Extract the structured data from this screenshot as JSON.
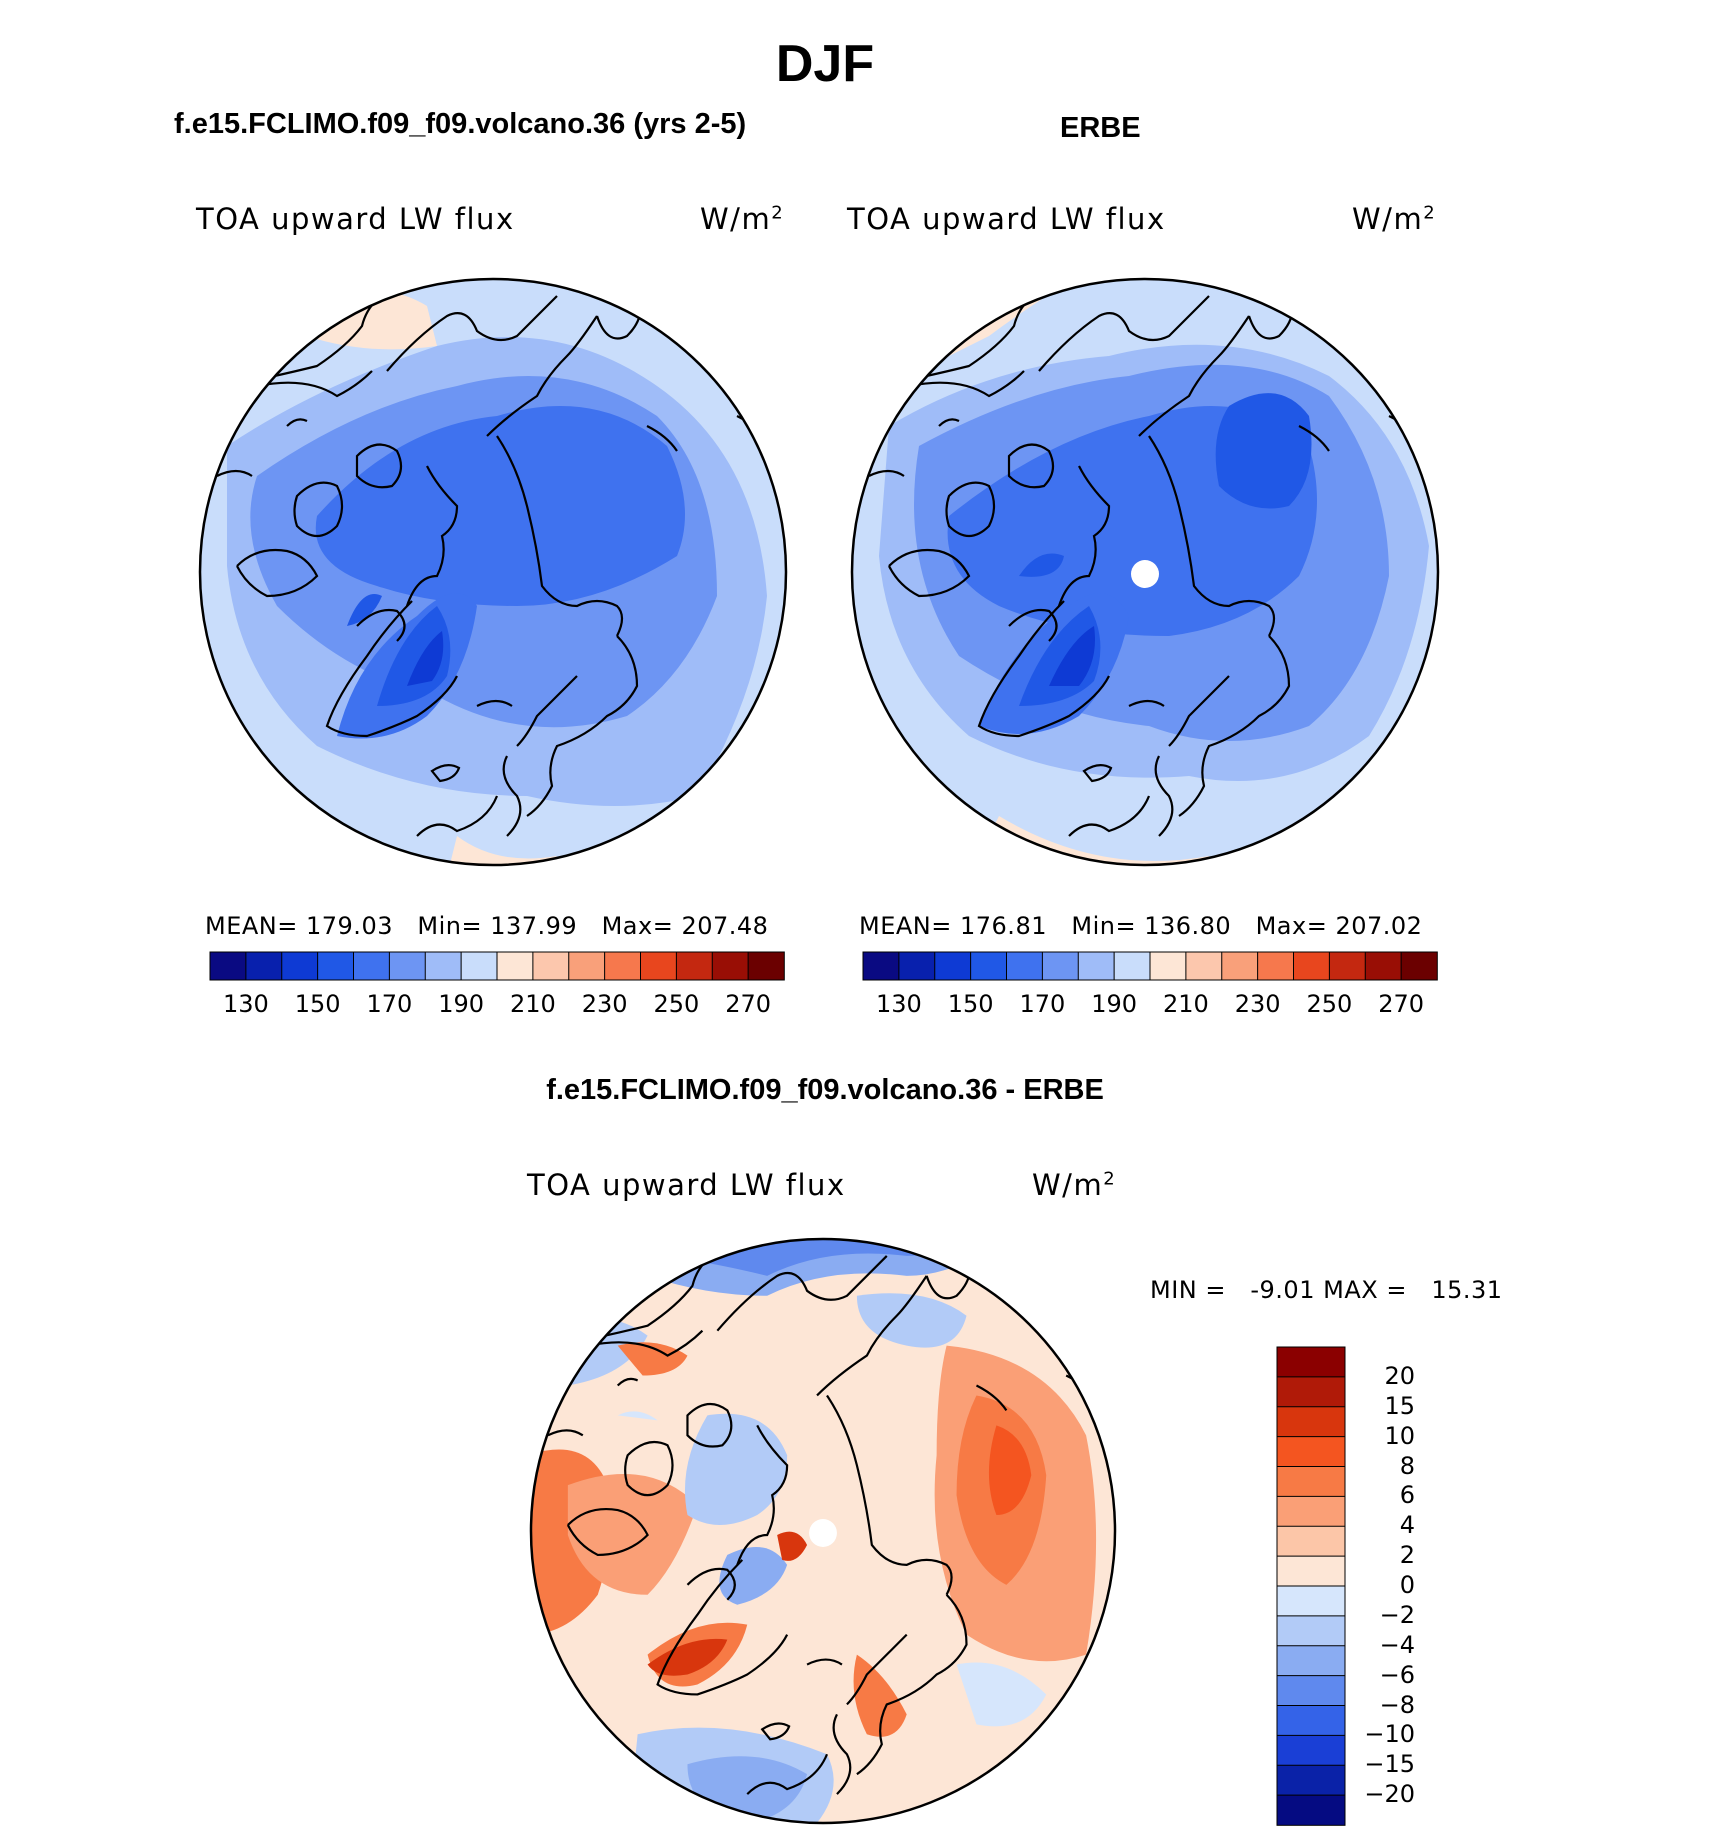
{
  "title": "DJF",
  "panels": [
    {
      "id": "model",
      "header": "f.e15.FCLIMO.f09_f09.volcano.36 (yrs 2-5)",
      "variable": "TOA upward LW flux",
      "units": "W/m",
      "units_sup": "2",
      "stats": {
        "mean_label": "MEAN=",
        "mean": "179.03",
        "min_label": "Min=",
        "min": "137.99",
        "max_label": "Max=",
        "max": "207.48"
      },
      "pole_marker": false
    },
    {
      "id": "obs",
      "header": "ERBE",
      "variable": "TOA upward LW flux",
      "units": "W/m",
      "units_sup": "2",
      "stats": {
        "mean_label": "MEAN=",
        "mean": "176.81",
        "min_label": "Min=",
        "min": "136.80",
        "max_label": "Max=",
        "max": "207.02"
      },
      "pole_marker": true
    }
  ],
  "diff_panel": {
    "header": "f.e15.FCLIMO.f09_f09.volcano.36 - ERBE",
    "variable": "TOA upward LW flux",
    "units": "W/m",
    "units_sup": "2",
    "stats": {
      "min_label": "MIN =",
      "min": "-9.01",
      "max_label": "MAX =",
      "max": "15.31"
    }
  },
  "chart_data": [
    {
      "type": "heatmap",
      "projection": "north polar stereographic",
      "title": "f.e15.FCLIMO.f09_f09.volcano.36 (yrs 2-5)",
      "subtitle": "TOA upward LW flux",
      "units": "W/m2",
      "mean": 179.03,
      "min": 137.99,
      "max": 207.48,
      "colorbar_ticks": [
        "130",
        "150",
        "170",
        "190",
        "210",
        "230",
        "250",
        "270"
      ],
      "levels": [
        130,
        140,
        150,
        160,
        170,
        180,
        190,
        200,
        210,
        220,
        230,
        240,
        250,
        260,
        270
      ],
      "colors": [
        "#0a0a82",
        "#0820ad",
        "#0e3ad4",
        "#2058e6",
        "#3f72ef",
        "#6d95f3",
        "#9fbcf8",
        "#c9ddfb",
        "#fde6d6",
        "#fcc7ad",
        "#f9a07a",
        "#f6784d",
        "#e8461e",
        "#c42810",
        "#990e05",
        "#6b0000"
      ]
    },
    {
      "type": "heatmap",
      "projection": "north polar stereographic",
      "title": "ERBE",
      "subtitle": "TOA upward LW flux",
      "units": "W/m2",
      "mean": 176.81,
      "min": 136.8,
      "max": 207.02,
      "colorbar_ticks": [
        "130",
        "150",
        "170",
        "190",
        "210",
        "230",
        "250",
        "270"
      ],
      "levels": [
        130,
        140,
        150,
        160,
        170,
        180,
        190,
        200,
        210,
        220,
        230,
        240,
        250,
        260,
        270
      ],
      "colors": [
        "#0a0a82",
        "#0820ad",
        "#0e3ad4",
        "#2058e6",
        "#3f72ef",
        "#6d95f3",
        "#9fbcf8",
        "#c9ddfb",
        "#fde6d6",
        "#fcc7ad",
        "#f9a07a",
        "#f6784d",
        "#e8461e",
        "#c42810",
        "#990e05",
        "#6b0000"
      ]
    },
    {
      "type": "heatmap",
      "projection": "north polar stereographic",
      "title": "f.e15.FCLIMO.f09_f09.volcano.36 - ERBE",
      "subtitle": "TOA upward LW flux",
      "units": "W/m2",
      "min": -9.01,
      "max": 15.31,
      "colorbar_ticks": [
        "20",
        "15",
        "10",
        "8",
        "6",
        "4",
        "2",
        "0",
        "−2",
        "−4",
        "−6",
        "−8",
        "−10",
        "−15",
        "−20"
      ],
      "colors_top_to_bottom": [
        "#8b0000",
        "#b01a08",
        "#d8360d",
        "#f45520",
        "#f77a45",
        "#fa9f76",
        "#fcc6a8",
        "#fde6d6",
        "#d6e6fc",
        "#b2cbf7",
        "#8aacf2",
        "#5f89ee",
        "#3463e8",
        "#1a3fd6",
        "#0a22a8",
        "#050b82"
      ]
    }
  ]
}
